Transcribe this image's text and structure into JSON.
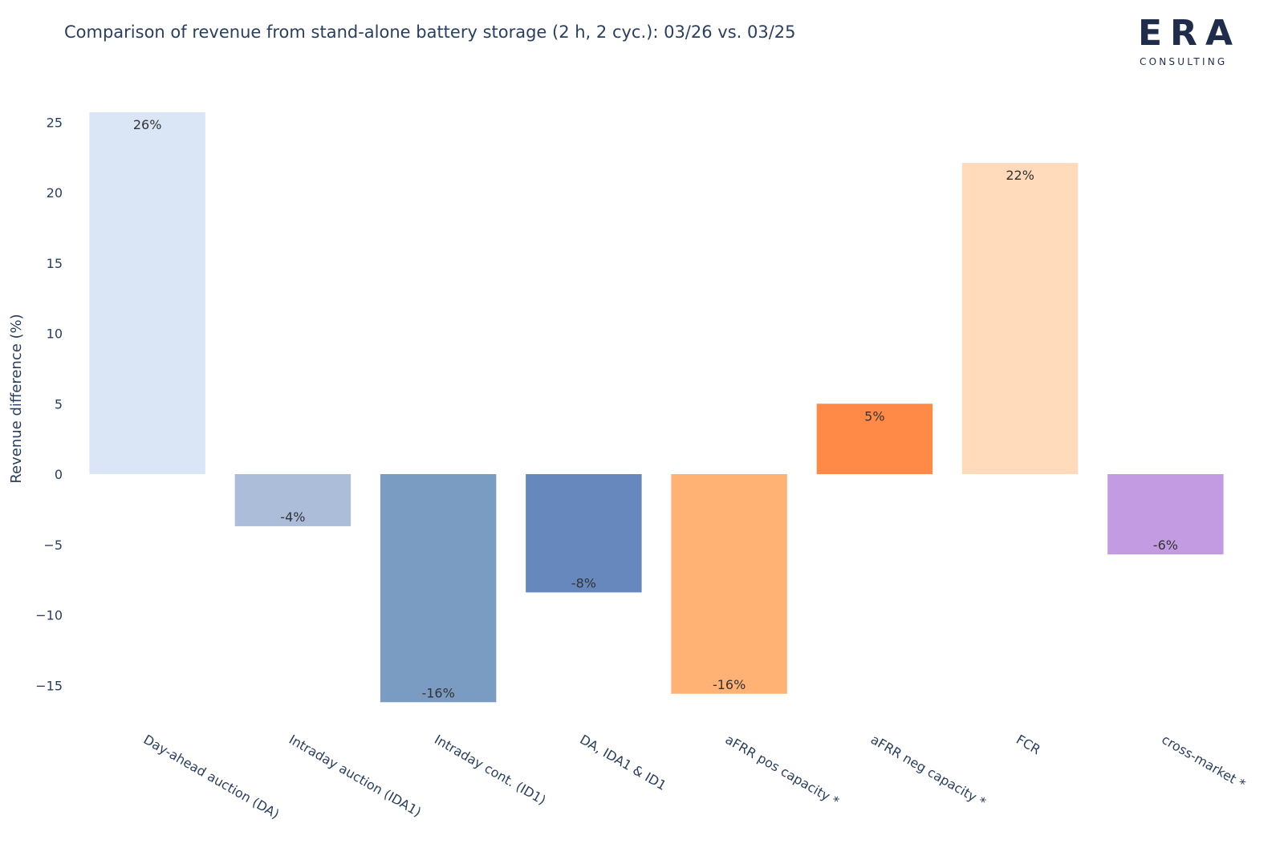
{
  "logo": {
    "mark": "ERA",
    "sub": "CONSULTING"
  },
  "chart_data": {
    "type": "bar",
    "title": "Comparison of revenue from stand-alone battery storage (2 h, 2 cyc.): 03/26 vs. 03/25",
    "xlabel": "",
    "ylabel": "Revenue difference (%)",
    "ylim": [
      -18.5,
      27
    ],
    "yticks": [
      25,
      20,
      15,
      10,
      5,
      0,
      -5,
      -10,
      -15
    ],
    "ytick_labels": [
      "25",
      "20",
      "15",
      "10",
      "5",
      "0",
      "−5",
      "−10",
      "−15"
    ],
    "grid": false,
    "categories": [
      "Day-ahead auction (DA)",
      "Intraday auction (IDA1)",
      "Intraday cont. (ID1)",
      "DA, IDA1 & ID1",
      "aFRR pos capacity *",
      "aFRR neg capacity *",
      "FCR",
      "cross-market *"
    ],
    "values": [
      25.7,
      -3.7,
      -16.2,
      -8.4,
      -15.6,
      5.0,
      22.1,
      -5.7
    ],
    "data_labels": [
      "26%",
      "-4%",
      "-16%",
      "-8%",
      "-16%",
      "5%",
      "22%",
      "-6%"
    ],
    "colors": [
      "#dae6f6",
      "#abbdd9",
      "#7a9bc2",
      "#6688bd",
      "#ffb273",
      "#ff8a47",
      "#ffdabb",
      "#c39be3"
    ]
  }
}
